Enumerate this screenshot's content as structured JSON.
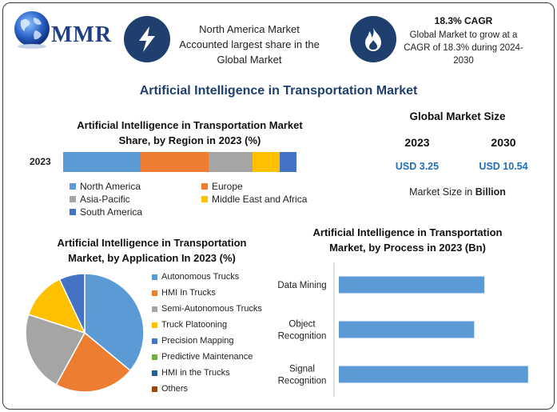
{
  "logo": {
    "text": "MMR"
  },
  "highlights": [
    {
      "icon": "lightning-icon",
      "text_lines": [
        "North America Market",
        "Accounted largest share in the",
        "Global Market"
      ]
    },
    {
      "icon": "flame-icon",
      "title": "18.3% CAGR",
      "text_lines": [
        "Global Market to grow at a",
        "CAGR of 18.3% during 2024-",
        "2030"
      ]
    }
  ],
  "main_title": "Artificial Intelligence in Transportation Market",
  "market_size": {
    "title": "Global Market Size",
    "years": [
      "2023",
      "2030"
    ],
    "values": [
      "USD 3.25",
      "USD 10.54"
    ],
    "unit_prefix": "Market Size in ",
    "unit_bold": "Billion"
  },
  "colors": {
    "blue": "#5b9bd5",
    "orange": "#ed7d31",
    "gray": "#a5a5a5",
    "yellow": "#ffc000",
    "darkblue": "#4472c4",
    "green": "#70ad47",
    "navy": "#255e91",
    "brown": "#9e480e",
    "title": "#1f3f6e",
    "value": "#1f6fb5"
  },
  "chart_data": [
    {
      "type": "bar",
      "orientation": "horizontal",
      "stacked": true,
      "title_lines": [
        "Artificial Intelligence in Transportation Market",
        "Share, by Region in 2023 (%)"
      ],
      "categories": [
        "2023"
      ],
      "series": [
        {
          "name": "North America",
          "values": [
            32
          ],
          "color": "#5b9bd5"
        },
        {
          "name": "Europe",
          "values": [
            28
          ],
          "color": "#ed7d31"
        },
        {
          "name": "Asia-Pacific",
          "values": [
            18
          ],
          "color": "#a5a5a5"
        },
        {
          "name": "Middle East and Africa",
          "values": [
            11
          ],
          "color": "#ffc000"
        },
        {
          "name": "South America",
          "values": [
            7
          ],
          "color": "#4472c4"
        }
      ],
      "legend_position": "bottom",
      "grid": false
    },
    {
      "type": "pie",
      "title_lines": [
        "Artificial Intelligence in Transportation",
        "Market, by Application In 2023 (%)"
      ],
      "labels": [
        "Autonomous Trucks",
        "HMI In Trucks",
        "Semi-Autonomous Trucks",
        "Truck Platooning",
        "Precision Mapping",
        "Predictive Maintenance",
        "HMI in the Trucks",
        "Others"
      ],
      "values": [
        36,
        22,
        22,
        13,
        7,
        0,
        0,
        0
      ],
      "colors": [
        "#5b9bd5",
        "#ed7d31",
        "#a5a5a5",
        "#ffc000",
        "#4472c4",
        "#70ad47",
        "#255e91",
        "#9e480e"
      ],
      "legend_position": "right"
    },
    {
      "type": "bar",
      "orientation": "horizontal",
      "title_lines": [
        "Artificial Intelligence in Transportation",
        "Market, by Process in 2023 (Bn)"
      ],
      "categories": [
        [
          "Data Mining"
        ],
        [
          "Object",
          "Recognition"
        ],
        [
          "Signal",
          "Recognition"
        ]
      ],
      "values": [
        1.0,
        0.93,
        1.3
      ],
      "xlim": [
        0,
        1.4
      ],
      "color": "#5b9bd5",
      "grid": false
    }
  ]
}
